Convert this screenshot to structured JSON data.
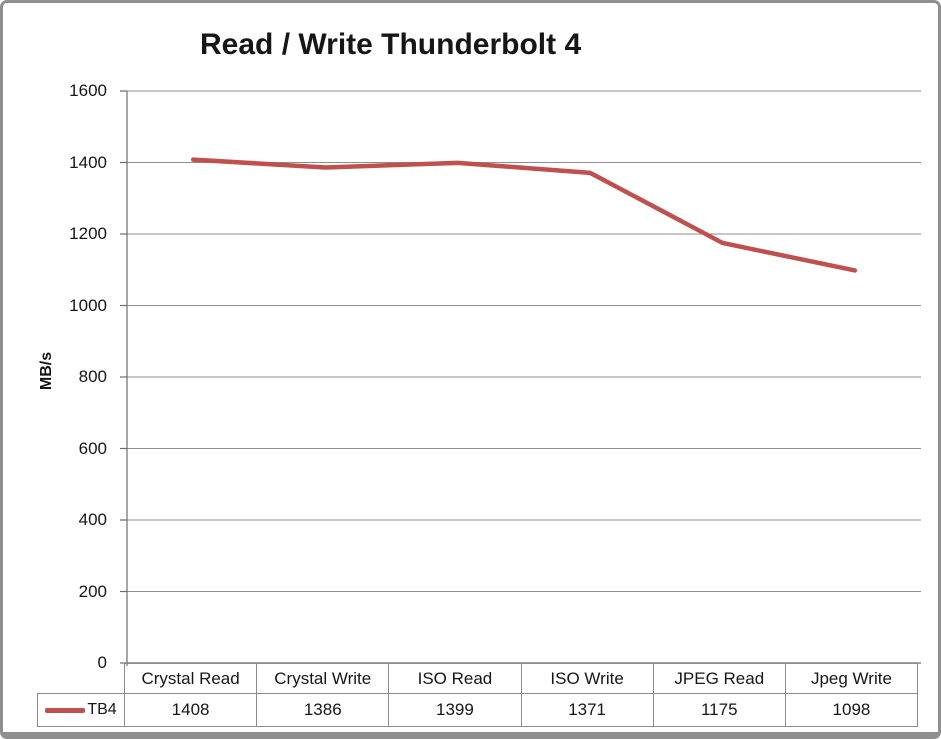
{
  "title": "Read / Write Thunderbolt 4",
  "y_axis": {
    "label": "MB/s",
    "tick_values": [
      1600,
      1400,
      1200,
      1000,
      800,
      600,
      400,
      200,
      0
    ]
  },
  "legend": {
    "series_label": "TB4"
  },
  "colors": {
    "line": "#C0504D",
    "grid": "#8E8E8E",
    "axis": "#6E6E6E",
    "table_border": "#8C8C8C",
    "frame_border": "#8F8F8F",
    "text": "#161616"
  },
  "chart_data": {
    "type": "line",
    "title": "Read / Write Thunderbolt 4",
    "xlabel": "",
    "ylabel": "MB/s",
    "categories": [
      "Crystal Read",
      "Crystal Write",
      "ISO Read",
      "ISO Write",
      "JPEG Read",
      "Jpeg Write"
    ],
    "series": [
      {
        "name": "TB4",
        "color": "#C0504D",
        "values": [
          1408,
          1386,
          1399,
          1371,
          1175,
          1098
        ]
      }
    ],
    "ylim": [
      0,
      1600
    ],
    "ytick_step": 200,
    "grid": true,
    "markers": false,
    "legend_position": "bottom-left",
    "data_table_shown": true
  }
}
